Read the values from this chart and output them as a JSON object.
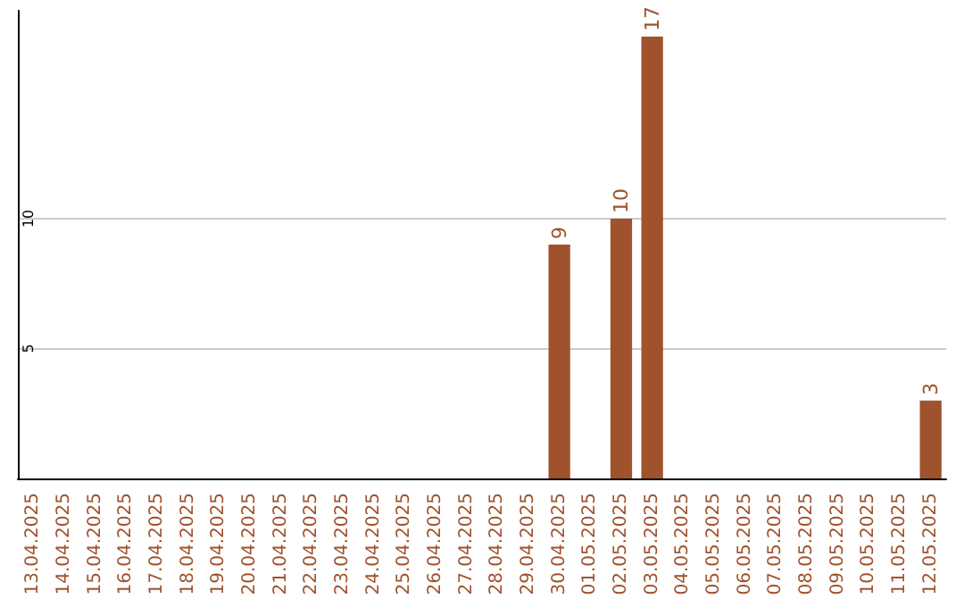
{
  "chart_data": {
    "type": "bar",
    "categories": [
      "13.04.2025",
      "14.04.2025",
      "15.04.2025",
      "16.04.2025",
      "17.04.2025",
      "18.04.2025",
      "19.04.2025",
      "20.04.2025",
      "21.04.2025",
      "22.04.2025",
      "23.04.2025",
      "24.04.2025",
      "25.04.2025",
      "26.04.2025",
      "27.04.2025",
      "28.04.2025",
      "29.04.2025",
      "30.04.2025",
      "01.05.2025",
      "02.05.2025",
      "03.05.2025",
      "04.05.2025",
      "05.05.2025",
      "06.05.2025",
      "07.05.2025",
      "08.05.2025",
      "09.05.2025",
      "10.05.2025",
      "11.05.2025",
      "12.05.2025"
    ],
    "values": [
      0,
      0,
      0,
      0,
      0,
      0,
      0,
      0,
      0,
      0,
      0,
      0,
      0,
      0,
      0,
      0,
      0,
      9,
      0,
      10,
      17,
      0,
      0,
      0,
      0,
      0,
      0,
      0,
      0,
      3
    ],
    "value_labels": [
      null,
      null,
      null,
      null,
      null,
      null,
      null,
      null,
      null,
      null,
      null,
      null,
      null,
      null,
      null,
      null,
      null,
      "9",
      null,
      "10",
      "17",
      null,
      null,
      null,
      null,
      null,
      null,
      null,
      null,
      "3"
    ],
    "color": "#a0522d",
    "ylim": [
      0,
      18
    ],
    "yticks": [
      5,
      10
    ],
    "grid": "y"
  }
}
